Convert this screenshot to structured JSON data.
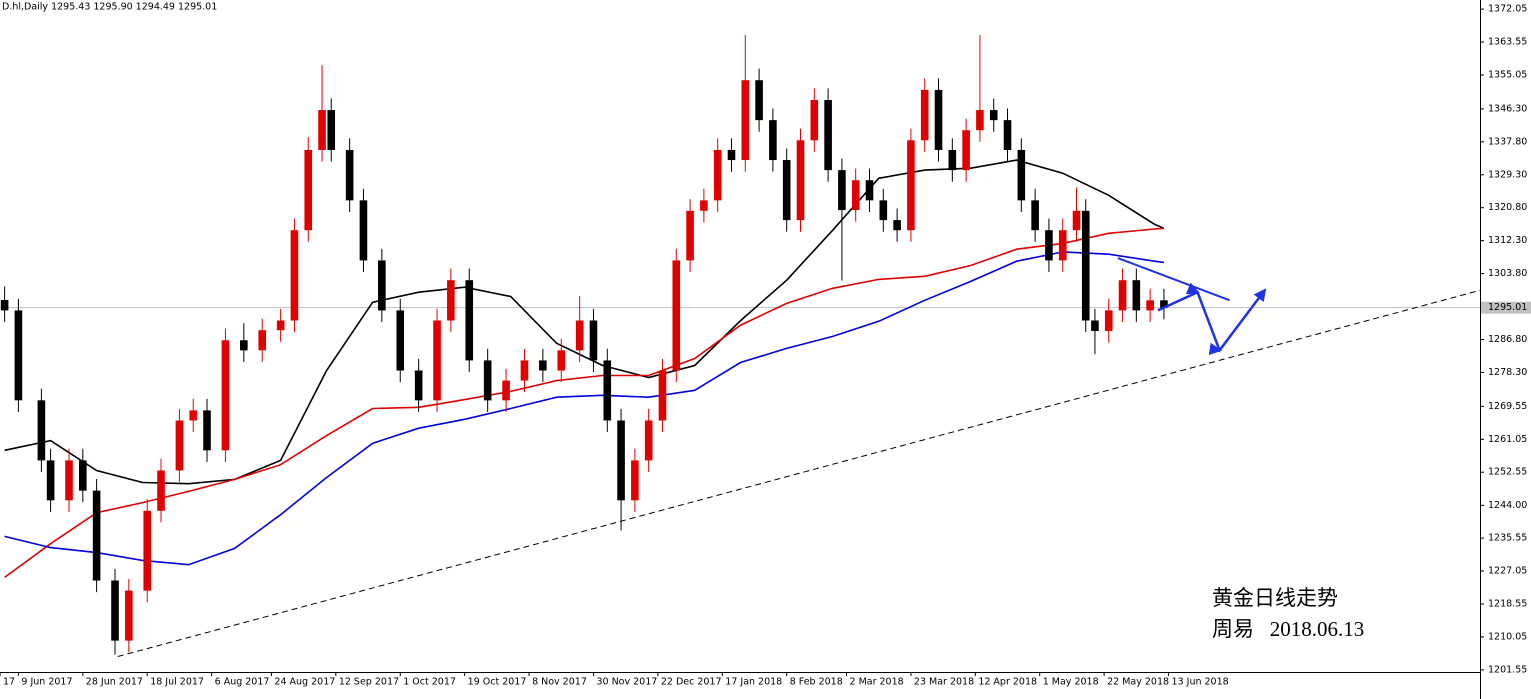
{
  "chart_data": {
    "type": "candlestick",
    "header": "D.hl,Daily  1295.43 1295.90 1294.49 1295.01",
    "annotations": [
      "黄金日线走势",
      "周易   2018.06.13"
    ],
    "up_color": "#e00000",
    "down_color": "#000000",
    "xlim": [
      -1,
      320.7
    ],
    "ylim": [
      1201.0,
      1374.4
    ],
    "last_price": 1295.01,
    "xticks": [
      {
        "value": -1,
        "label": "17"
      },
      {
        "value": 3,
        "label": "9 Jun 2017"
      },
      {
        "value": 17,
        "label": "28 Jun 2017"
      },
      {
        "value": 31,
        "label": "18 Jul 2017"
      },
      {
        "value": 45,
        "label": "6 Aug 2017"
      },
      {
        "value": 58,
        "label": "24 Aug 2017"
      },
      {
        "value": 72,
        "label": "12 Sep 2017"
      },
      {
        "value": 86,
        "label": "1 Oct 2017"
      },
      {
        "value": 100,
        "label": "19 Oct 2017"
      },
      {
        "value": 114,
        "label": "8 Nov 2017"
      },
      {
        "value": 128,
        "label": "30 Nov 2017"
      },
      {
        "value": 142,
        "label": "22 Dec 2017"
      },
      {
        "value": 156,
        "label": "17 Jan 2018"
      },
      {
        "value": 170,
        "label": "8 Feb 2018"
      },
      {
        "value": 183,
        "label": "2 Mar 2018"
      },
      {
        "value": 197,
        "label": "23 Mar 2018"
      },
      {
        "value": 211,
        "label": "12 Apr 2018"
      },
      {
        "value": 225,
        "label": "1 May 2018"
      },
      {
        "value": 239,
        "label": "22 May 2018"
      },
      {
        "value": 253,
        "label": "13 Jun 2018"
      }
    ],
    "yticks": [
      1372.05,
      1363.55,
      1355.05,
      {
        "value": 1346.3,
        "label": "1346.30"
      },
      {
        "value": 1337.8,
        "label": "1337.80"
      },
      {
        "value": 1329.3,
        "label": "1329.30"
      },
      {
        "value": 1320.8,
        "label": "1320.80"
      },
      {
        "value": 1312.3,
        "label": "1312.30"
      },
      {
        "value": 1303.8,
        "label": "1303.80"
      },
      {
        "value": 1286.8,
        "label": "1286.80"
      },
      {
        "value": 1278.3,
        "label": "1278.30"
      },
      1269.55,
      1261.05,
      1252.55,
      {
        "value": 1244,
        "label": "1244.00"
      },
      1235.55,
      1227.05,
      1218.55,
      1210.05,
      1201.55
    ],
    "candles": {
      "x": [
        0,
        3,
        8,
        10,
        14,
        17,
        20,
        24,
        27,
        31,
        34,
        38,
        41,
        44,
        48,
        52,
        56,
        60,
        63,
        66,
        69,
        71,
        75,
        78,
        82,
        86,
        90,
        94,
        97,
        101,
        105,
        109,
        113,
        117,
        121,
        125,
        128,
        131,
        134,
        137,
        140,
        143,
        146,
        149,
        152,
        155,
        158,
        161,
        164,
        167,
        170,
        173,
        176,
        179,
        182,
        185,
        188,
        191,
        194,
        197,
        200,
        203,
        206,
        209,
        212,
        215,
        218,
        221,
        224,
        227,
        230,
        233,
        235,
        237,
        240,
        243,
        246,
        249,
        252
      ],
      "open": [
        1297.0,
        1294.3,
        1271.1,
        1255.6,
        1245.3,
        1255.6,
        1247.8,
        1224.6,
        1209.1,
        1222.0,
        1242.6,
        1253.0,
        1265.9,
        1268.5,
        1258.2,
        1286.6,
        1284.0,
        1289.2,
        1291.7,
        1315.0,
        1335.7,
        1346.0,
        1335.7,
        1322.7,
        1307.2,
        1294.3,
        1278.8,
        1271.1,
        1291.7,
        1302.1,
        1281.4,
        1271.1,
        1276.2,
        1281.4,
        1278.8,
        1284.0,
        1291.7,
        1281.4,
        1265.9,
        1245.3,
        1255.6,
        1265.9,
        1278.8,
        1307.2,
        1320.0,
        1322.7,
        1335.7,
        1333.1,
        1353.7,
        1343.4,
        1333.1,
        1317.6,
        1338.2,
        1348.6,
        1330.5,
        1320.2,
        1327.9,
        1322.7,
        1317.6,
        1315.0,
        1338.2,
        1351.2,
        1335.7,
        1330.5,
        1340.8,
        1346.0,
        1343.4,
        1335.7,
        1322.7,
        1315.0,
        1307.2,
        1315.0,
        1320.0,
        1291.7,
        1289.0,
        1294.3,
        1302.1,
        1294.3,
        1296.9
      ],
      "high": [
        1300.5,
        1297.3,
        1274.1,
        1258.6,
        1258.6,
        1258.6,
        1250.8,
        1227.6,
        1225.0,
        1245.6,
        1256.0,
        1268.9,
        1271.5,
        1271.5,
        1289.6,
        1291.0,
        1292.2,
        1294.7,
        1318.0,
        1339.0,
        1357.6,
        1349.0,
        1338.7,
        1325.7,
        1310.2,
        1297.3,
        1281.8,
        1294.7,
        1305.1,
        1305.1,
        1284.4,
        1279.2,
        1284.4,
        1284.4,
        1287.0,
        1298.0,
        1294.7,
        1284.4,
        1268.9,
        1258.6,
        1268.9,
        1281.8,
        1310.2,
        1323.0,
        1325.7,
        1338.7,
        1338.7,
        1365.4,
        1356.7,
        1346.4,
        1336.1,
        1341.2,
        1351.6,
        1351.6,
        1333.5,
        1330.9,
        1330.9,
        1325.7,
        1320.6,
        1341.2,
        1354.2,
        1354.2,
        1338.7,
        1343.8,
        1365.4,
        1349.0,
        1346.4,
        1338.7,
        1325.7,
        1318.0,
        1318.0,
        1326.0,
        1323.0,
        1294.7,
        1297.3,
        1305.1,
        1305.1,
        1299.9,
        1299.9
      ],
      "low": [
        1291.3,
        1268.1,
        1252.6,
        1242.3,
        1242.3,
        1244.8,
        1221.6,
        1205.5,
        1206.1,
        1219.0,
        1239.6,
        1250.0,
        1262.9,
        1255.2,
        1255.2,
        1281.0,
        1281.0,
        1286.2,
        1288.7,
        1312.0,
        1332.7,
        1332.7,
        1319.7,
        1304.2,
        1291.3,
        1275.8,
        1268.1,
        1268.1,
        1288.7,
        1278.4,
        1268.1,
        1268.1,
        1273.2,
        1275.8,
        1275.8,
        1281.0,
        1278.4,
        1262.9,
        1237.5,
        1242.3,
        1252.6,
        1262.9,
        1275.8,
        1304.2,
        1317.0,
        1319.7,
        1330.1,
        1330.1,
        1340.4,
        1330.1,
        1314.6,
        1314.6,
        1335.2,
        1327.5,
        1302.0,
        1317.2,
        1319.7,
        1314.6,
        1312.0,
        1312.0,
        1335.2,
        1332.7,
        1327.5,
        1327.5,
        1337.8,
        1340.4,
        1332.7,
        1319.7,
        1312.0,
        1304.2,
        1304.2,
        1312.0,
        1288.7,
        1283.0,
        1286.0,
        1291.3,
        1291.3,
        1291.3,
        1292.0
      ],
      "close": [
        1294.3,
        1271.1,
        1255.6,
        1245.3,
        1255.6,
        1247.8,
        1224.6,
        1209.1,
        1222.0,
        1242.6,
        1253.0,
        1265.9,
        1268.5,
        1258.2,
        1286.6,
        1284.0,
        1289.2,
        1291.7,
        1315.0,
        1335.7,
        1346.0,
        1335.7,
        1322.7,
        1307.2,
        1294.3,
        1278.8,
        1271.1,
        1291.7,
        1302.1,
        1281.4,
        1271.1,
        1276.2,
        1281.4,
        1278.8,
        1284.0,
        1291.7,
        1281.4,
        1265.9,
        1245.3,
        1255.6,
        1265.9,
        1278.8,
        1307.2,
        1320.0,
        1322.7,
        1335.7,
        1333.1,
        1353.7,
        1343.4,
        1333.1,
        1317.6,
        1338.2,
        1348.6,
        1330.5,
        1320.2,
        1327.9,
        1322.7,
        1317.6,
        1315.0,
        1338.2,
        1351.2,
        1335.7,
        1330.5,
        1340.8,
        1346.0,
        1343.4,
        1335.7,
        1322.7,
        1315.0,
        1307.2,
        1315.0,
        1320.0,
        1291.7,
        1289.0,
        1294.3,
        1302.1,
        1294.3,
        1296.9,
        1295.0
      ]
    },
    "series": [
      {
        "color": "#000000",
        "x": [
          0,
          10,
          20,
          30,
          40,
          50,
          60,
          70,
          80,
          90,
          100,
          110,
          120,
          130,
          140,
          150,
          160,
          170,
          180,
          190,
          200,
          210,
          220,
          230,
          240,
          250,
          252
        ],
        "values": [
          1258.2,
          1260.7,
          1253.0,
          1249.9,
          1249.6,
          1250.7,
          1255.6,
          1278.8,
          1296.4,
          1299.0,
          1300.3,
          1297.9,
          1285.8,
          1280.1,
          1277.0,
          1280.1,
          1291.7,
          1302.1,
          1315.0,
          1328.4,
          1330.5,
          1331.0,
          1333.1,
          1329.7,
          1324.0,
          1316.5,
          1315.5
        ]
      },
      {
        "color": "#e00000",
        "x": [
          0,
          10,
          20,
          30,
          40,
          50,
          60,
          70,
          80,
          90,
          100,
          110,
          120,
          130,
          140,
          150,
          160,
          170,
          180,
          190,
          200,
          210,
          220,
          230,
          240,
          250,
          252
        ],
        "values": [
          1225.4,
          1234.1,
          1242.1,
          1244.7,
          1247.6,
          1250.7,
          1254.5,
          1262.0,
          1269.0,
          1269.3,
          1271.3,
          1273.4,
          1276.2,
          1277.5,
          1277.5,
          1281.9,
          1290.5,
          1296.1,
          1300.0,
          1302.3,
          1303.1,
          1305.9,
          1310.1,
          1311.6,
          1314.2,
          1315.3,
          1315.5
        ]
      },
      {
        "color": "#0000e0",
        "x": [
          0,
          10,
          20,
          30,
          40,
          50,
          60,
          70,
          80,
          90,
          100,
          110,
          120,
          130,
          140,
          150,
          160,
          170,
          180,
          190,
          200,
          210,
          220,
          230,
          240,
          250,
          252
        ],
        "values": [
          1236.0,
          1233.1,
          1231.8,
          1229.8,
          1228.7,
          1232.9,
          1241.6,
          1251.2,
          1260.0,
          1263.9,
          1266.2,
          1269.0,
          1271.9,
          1272.4,
          1271.9,
          1273.7,
          1280.9,
          1284.5,
          1287.6,
          1291.5,
          1296.9,
          1301.8,
          1307.0,
          1309.4,
          1308.8,
          1307.0,
          1306.7
        ]
      }
    ],
    "trendline": {
      "color": "#000000",
      "x": [
        24.6,
        320.7
      ],
      "values": [
        1205.0,
        1299.5
      ]
    },
    "resistance": {
      "color": "#1e32e6",
      "x": [
        242,
        266.3
      ],
      "values": [
        1307.8,
        1296.9
      ]
    },
    "forecast": {
      "color": "#1e32e6",
      "x": [
        250.7,
        259.3,
        264.1,
        273.9
      ],
      "values": [
        1294.3,
        1299.0,
        1284.0,
        1299.5
      ]
    }
  }
}
